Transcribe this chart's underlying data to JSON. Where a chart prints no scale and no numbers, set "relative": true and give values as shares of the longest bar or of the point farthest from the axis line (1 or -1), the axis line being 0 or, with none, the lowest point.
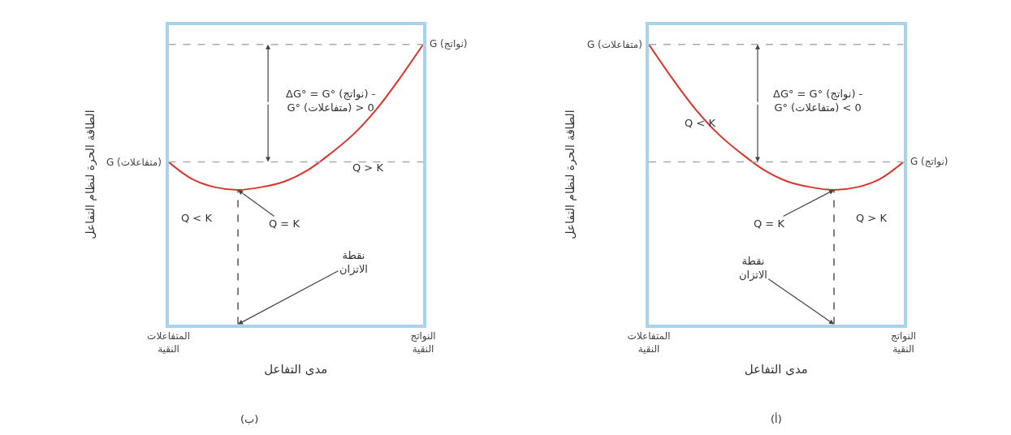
{
  "chart_data": [
    {
      "type": "line",
      "relative": true,
      "ylabel": "الطاقة الحرة لنظام التفاعل",
      "xlabel": "مدى التفاعل",
      "categories": [
        "المتفاعلات\nالنقية",
        null,
        null,
        null,
        null,
        null,
        null,
        null,
        null,
        null,
        null,
        "النواتج\nالنقية"
      ],
      "series": [
        {
          "color": "#d9342b",
          "values": [
            0.58,
            0.52,
            0.49,
            0.48,
            0.49,
            0.51,
            0.55,
            0.61,
            0.68,
            0.77,
            0.88,
            1.0
          ]
        }
      ],
      "ref_lines": [
        {
          "axis": "y",
          "value": 1.0,
          "label": "G (نواتج)",
          "color": "#aaaaaa",
          "line_style": "dashed"
        },
        {
          "axis": "y",
          "value": 0.58,
          "label": "G (متفاعلات)",
          "color": "#aaaaaa",
          "line_style": "dashed"
        }
      ],
      "annotations": [
        "ΔG° = G° (نواتج) -\nG° (متفاعلات) > 0",
        "Q > K",
        "Q < K",
        "Q = K",
        "نقطة\nالاتزان",
        "(ب)"
      ],
      "tick_labels": "x"
    },
    {
      "type": "line",
      "relative": true,
      "ylabel": "الطاقة الحرة لنظام التفاعل",
      "xlabel": "مدى التفاعل",
      "categories": [
        "المتفاعلات\nالنقية",
        null,
        null,
        null,
        null,
        null,
        null,
        null,
        null,
        null,
        null,
        "النواتج\nالنقية"
      ],
      "series": [
        {
          "color": "#d9342b",
          "values": [
            1.0,
            0.88,
            0.77,
            0.68,
            0.61,
            0.55,
            0.51,
            0.49,
            0.48,
            0.49,
            0.52,
            0.58
          ]
        }
      ],
      "ref_lines": [
        {
          "axis": "y",
          "value": 1.0,
          "label": "G (متفاعلات)",
          "color": "#aaaaaa",
          "line_style": "dashed"
        },
        {
          "axis": "y",
          "value": 0.58,
          "label": "G (نواتج)",
          "color": "#aaaaaa",
          "line_style": "dashed"
        }
      ],
      "annotations": [
        "ΔG° = G° (نواتج) -\nG° (متفاعلات) < 0",
        "Q < K",
        "Q = K",
        "Q > K",
        "نقطة\nالاتزان",
        "(أ)"
      ],
      "tick_labels": "x"
    }
  ]
}
